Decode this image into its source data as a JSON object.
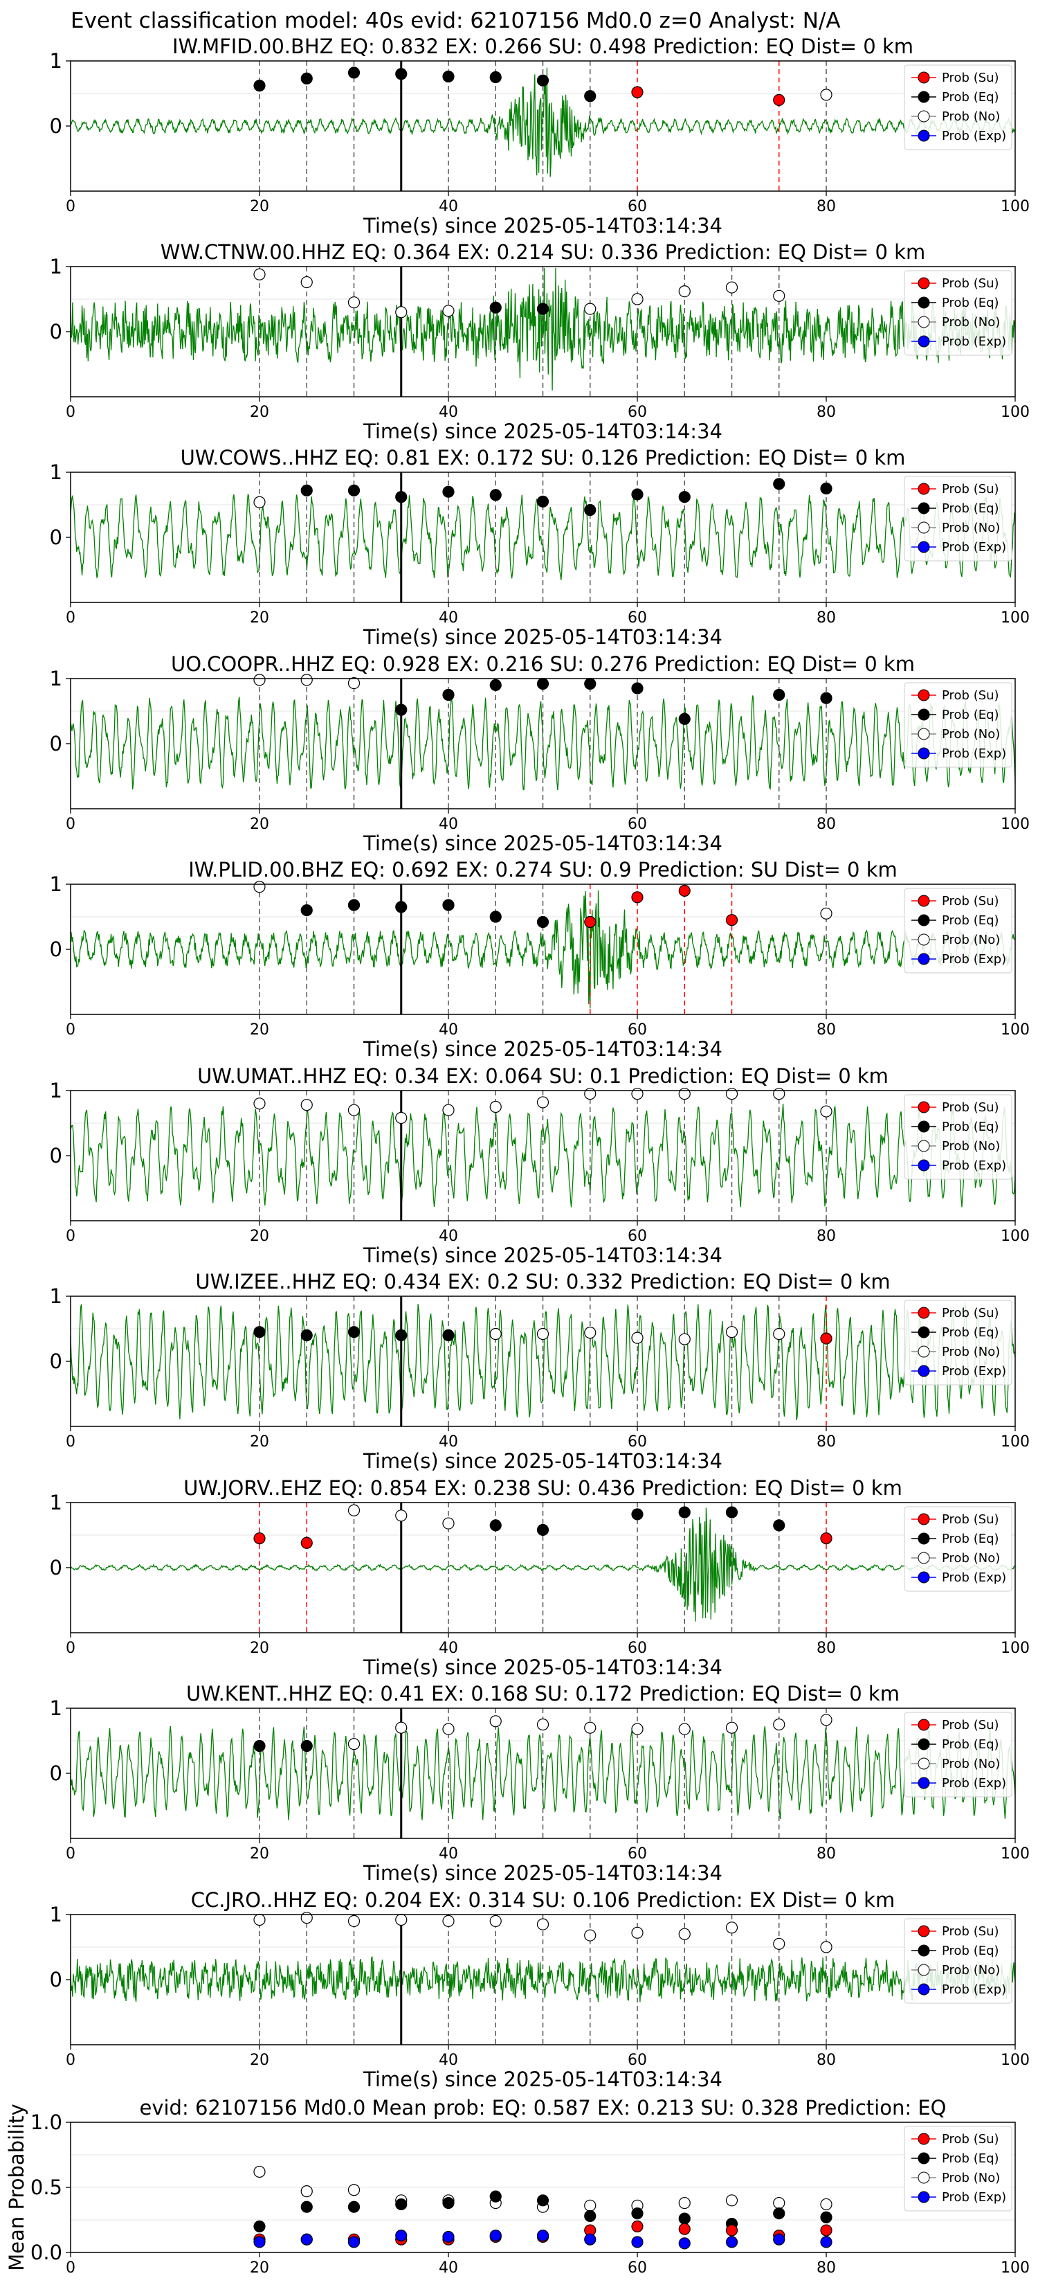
{
  "page_title": "Event classification model: 40s evid: 62107156 Md0.0 z=0 Analyst: N/A",
  "xlabel": "Time(s) since 2025-05-14T03:14:34",
  "xticks": [
    "0",
    "20",
    "40",
    "60",
    "80",
    "100"
  ],
  "yticks": [
    "0",
    "1"
  ],
  "legend": [
    "Prob (Su)",
    "Prob (Eq)",
    "Prob (No)",
    "Prob (Exp)"
  ],
  "colors": {
    "su": "#ff0000",
    "eq": "#000000",
    "no": "#ffffff",
    "exp": "#0000ff",
    "trace": "#008000"
  },
  "chart_data": [
    {
      "type": "line",
      "title": "IW.MFID.00.BHZ   EQ: 0.832  EX: 0.266  SU: 0.498   Prediction: EQ    Dist= 0 km",
      "xlim": [
        0,
        100
      ],
      "ylim": [
        -1,
        1
      ],
      "pick": 35,
      "trace": {
        "style": "burst",
        "center": 50,
        "amp": 0.08,
        "burst_amp": 0.85,
        "width": 3.5
      },
      "windows": [
        {
          "t": 20,
          "p": 0.62,
          "c": "eq"
        },
        {
          "t": 25,
          "p": 0.73,
          "c": "eq"
        },
        {
          "t": 30,
          "p": 0.82,
          "c": "eq"
        },
        {
          "t": 35,
          "p": 0.8,
          "c": "eq"
        },
        {
          "t": 40,
          "p": 0.76,
          "c": "eq"
        },
        {
          "t": 45,
          "p": 0.75,
          "c": "eq"
        },
        {
          "t": 50,
          "p": 0.7,
          "c": "eq"
        },
        {
          "t": 55,
          "p": 0.46,
          "c": "eq"
        },
        {
          "t": 60,
          "p": 0.52,
          "c": "su"
        },
        {
          "t": 75,
          "p": 0.4,
          "c": "su"
        },
        {
          "t": 80,
          "p": 0.48,
          "c": "no"
        }
      ]
    },
    {
      "type": "line",
      "title": "WW.CTNW.00.HHZ   EQ: 0.364  EX: 0.214  SU: 0.336   Prediction: EQ    Dist= 0 km",
      "xlim": [
        0,
        100
      ],
      "ylim": [
        -1,
        1
      ],
      "pick": 35,
      "trace": {
        "style": "noisy",
        "center": 50,
        "amp": 0.35,
        "burst_amp": 0.7,
        "width": 6
      },
      "windows": [
        {
          "t": 20,
          "p": 0.88,
          "c": "no"
        },
        {
          "t": 25,
          "p": 0.76,
          "c": "no"
        },
        {
          "t": 30,
          "p": 0.45,
          "c": "no"
        },
        {
          "t": 35,
          "p": 0.3,
          "c": "no"
        },
        {
          "t": 40,
          "p": 0.32,
          "c": "no"
        },
        {
          "t": 45,
          "p": 0.37,
          "c": "eq"
        },
        {
          "t": 50,
          "p": 0.35,
          "c": "eq"
        },
        {
          "t": 55,
          "p": 0.35,
          "c": "no"
        },
        {
          "t": 60,
          "p": 0.5,
          "c": "no"
        },
        {
          "t": 65,
          "p": 0.62,
          "c": "no"
        },
        {
          "t": 70,
          "p": 0.68,
          "c": "no"
        },
        {
          "t": 75,
          "p": 0.55,
          "c": "no"
        }
      ]
    },
    {
      "type": "line",
      "title": "UW.COWS..HHZ   EQ: 0.81  EX: 0.172  SU: 0.126   Prediction: EQ    Dist= 0 km",
      "xlim": [
        0,
        100
      ],
      "ylim": [
        -1,
        1
      ],
      "pick": 35,
      "trace": {
        "style": "wave",
        "center": 0,
        "amp": 0.55,
        "burst_amp": 0,
        "width": 0
      },
      "windows": [
        {
          "t": 20,
          "p": 0.54,
          "c": "no"
        },
        {
          "t": 25,
          "p": 0.72,
          "c": "eq"
        },
        {
          "t": 30,
          "p": 0.72,
          "c": "eq"
        },
        {
          "t": 35,
          "p": 0.62,
          "c": "eq"
        },
        {
          "t": 40,
          "p": 0.7,
          "c": "eq"
        },
        {
          "t": 45,
          "p": 0.65,
          "c": "eq"
        },
        {
          "t": 50,
          "p": 0.55,
          "c": "eq"
        },
        {
          "t": 55,
          "p": 0.42,
          "c": "eq"
        },
        {
          "t": 60,
          "p": 0.66,
          "c": "eq"
        },
        {
          "t": 65,
          "p": 0.62,
          "c": "eq"
        },
        {
          "t": 75,
          "p": 0.82,
          "c": "eq"
        },
        {
          "t": 80,
          "p": 0.75,
          "c": "eq"
        }
      ]
    },
    {
      "type": "line",
      "title": "UO.COOPR..HHZ   EQ: 0.928  EX: 0.216  SU: 0.276   Prediction: EQ    Dist= 0 km",
      "xlim": [
        0,
        100
      ],
      "ylim": [
        -1,
        1
      ],
      "pick": 35,
      "trace": {
        "style": "wave",
        "center": 0,
        "amp": 0.6,
        "burst_amp": 0,
        "width": 0
      },
      "windows": [
        {
          "t": 20,
          "p": 0.98,
          "c": "no"
        },
        {
          "t": 25,
          "p": 0.98,
          "c": "no"
        },
        {
          "t": 30,
          "p": 0.93,
          "c": "no"
        },
        {
          "t": 35,
          "p": 0.52,
          "c": "eq"
        },
        {
          "t": 40,
          "p": 0.75,
          "c": "eq"
        },
        {
          "t": 45,
          "p": 0.9,
          "c": "eq"
        },
        {
          "t": 50,
          "p": 0.92,
          "c": "eq"
        },
        {
          "t": 55,
          "p": 0.92,
          "c": "eq"
        },
        {
          "t": 60,
          "p": 0.85,
          "c": "eq"
        },
        {
          "t": 65,
          "p": 0.38,
          "c": "eq"
        },
        {
          "t": 75,
          "p": 0.75,
          "c": "eq"
        },
        {
          "t": 80,
          "p": 0.7,
          "c": "eq"
        }
      ]
    },
    {
      "type": "line",
      "title": "IW.PLID.00.BHZ   EQ: 0.692  EX: 0.274  SU: 0.9   Prediction: SU    Dist= 0 km",
      "xlim": [
        0,
        100
      ],
      "ylim": [
        -1,
        1
      ],
      "pick": 35,
      "trace": {
        "style": "burst",
        "center": 55,
        "amp": 0.2,
        "burst_amp": 0.85,
        "width": 4
      },
      "windows": [
        {
          "t": 20,
          "p": 0.96,
          "c": "no"
        },
        {
          "t": 25,
          "p": 0.6,
          "c": "eq"
        },
        {
          "t": 30,
          "p": 0.68,
          "c": "eq"
        },
        {
          "t": 35,
          "p": 0.65,
          "c": "eq"
        },
        {
          "t": 40,
          "p": 0.68,
          "c": "eq"
        },
        {
          "t": 45,
          "p": 0.5,
          "c": "eq"
        },
        {
          "t": 50,
          "p": 0.42,
          "c": "eq"
        },
        {
          "t": 55,
          "p": 0.42,
          "c": "su"
        },
        {
          "t": 60,
          "p": 0.8,
          "c": "su"
        },
        {
          "t": 65,
          "p": 0.9,
          "c": "su"
        },
        {
          "t": 70,
          "p": 0.45,
          "c": "su"
        },
        {
          "t": 80,
          "p": 0.55,
          "c": "no"
        }
      ]
    },
    {
      "type": "line",
      "title": "UW.UMAT..HHZ   EQ: 0.34  EX: 0.064  SU: 0.1   Prediction: EQ    Dist= 0 km",
      "xlim": [
        0,
        100
      ],
      "ylim": [
        -1,
        1
      ],
      "pick": 35,
      "trace": {
        "style": "wave",
        "center": 0,
        "amp": 0.65,
        "burst_amp": 0,
        "width": 0
      },
      "windows": [
        {
          "t": 20,
          "p": 0.8,
          "c": "no"
        },
        {
          "t": 25,
          "p": 0.78,
          "c": "no"
        },
        {
          "t": 30,
          "p": 0.7,
          "c": "no"
        },
        {
          "t": 35,
          "p": 0.58,
          "c": "no"
        },
        {
          "t": 40,
          "p": 0.7,
          "c": "no"
        },
        {
          "t": 45,
          "p": 0.75,
          "c": "no"
        },
        {
          "t": 50,
          "p": 0.82,
          "c": "no"
        },
        {
          "t": 55,
          "p": 0.95,
          "c": "no"
        },
        {
          "t": 60,
          "p": 0.95,
          "c": "no"
        },
        {
          "t": 65,
          "p": 0.95,
          "c": "no"
        },
        {
          "t": 70,
          "p": 0.95,
          "c": "no"
        },
        {
          "t": 75,
          "p": 0.95,
          "c": "no"
        },
        {
          "t": 80,
          "p": 0.68,
          "c": "no"
        }
      ]
    },
    {
      "type": "line",
      "title": "UW.IZEE..HHZ   EQ: 0.434  EX: 0.2  SU: 0.332   Prediction: EQ    Dist= 0 km",
      "xlim": [
        0,
        100
      ],
      "ylim": [
        -1,
        1
      ],
      "pick": 35,
      "trace": {
        "style": "wave",
        "center": 0,
        "amp": 0.75,
        "burst_amp": 0,
        "width": 0
      },
      "windows": [
        {
          "t": 20,
          "p": 0.45,
          "c": "eq"
        },
        {
          "t": 25,
          "p": 0.4,
          "c": "eq"
        },
        {
          "t": 30,
          "p": 0.45,
          "c": "eq"
        },
        {
          "t": 35,
          "p": 0.4,
          "c": "eq"
        },
        {
          "t": 40,
          "p": 0.4,
          "c": "eq"
        },
        {
          "t": 45,
          "p": 0.42,
          "c": "no"
        },
        {
          "t": 50,
          "p": 0.42,
          "c": "no"
        },
        {
          "t": 55,
          "p": 0.44,
          "c": "no"
        },
        {
          "t": 60,
          "p": 0.36,
          "c": "no"
        },
        {
          "t": 65,
          "p": 0.34,
          "c": "no"
        },
        {
          "t": 70,
          "p": 0.45,
          "c": "no"
        },
        {
          "t": 75,
          "p": 0.42,
          "c": "no"
        },
        {
          "t": 80,
          "p": 0.35,
          "c": "su"
        }
      ]
    },
    {
      "type": "line",
      "title": "UW.JORV..EHZ   EQ: 0.854  EX: 0.238  SU: 0.436   Prediction: EQ    Dist= 0 km",
      "xlim": [
        0,
        100
      ],
      "ylim": [
        -1,
        1
      ],
      "pick": 35,
      "trace": {
        "style": "burst",
        "center": 67,
        "amp": 0.03,
        "burst_amp": 0.9,
        "width": 3
      },
      "windows": [
        {
          "t": 20,
          "p": 0.45,
          "c": "su"
        },
        {
          "t": 25,
          "p": 0.38,
          "c": "su"
        },
        {
          "t": 30,
          "p": 0.88,
          "c": "no"
        },
        {
          "t": 35,
          "p": 0.8,
          "c": "no"
        },
        {
          "t": 40,
          "p": 0.68,
          "c": "no"
        },
        {
          "t": 45,
          "p": 0.65,
          "c": "eq"
        },
        {
          "t": 50,
          "p": 0.58,
          "c": "eq"
        },
        {
          "t": 60,
          "p": 0.82,
          "c": "eq"
        },
        {
          "t": 65,
          "p": 0.85,
          "c": "eq"
        },
        {
          "t": 70,
          "p": 0.85,
          "c": "eq"
        },
        {
          "t": 75,
          "p": 0.65,
          "c": "eq"
        },
        {
          "t": 80,
          "p": 0.45,
          "c": "su"
        }
      ]
    },
    {
      "type": "line",
      "title": "UW.KENT..HHZ   EQ: 0.41  EX: 0.168  SU: 0.172   Prediction: EQ    Dist= 0 km",
      "xlim": [
        0,
        100
      ],
      "ylim": [
        -1,
        1
      ],
      "pick": 35,
      "trace": {
        "style": "wave",
        "center": 0,
        "amp": 0.6,
        "burst_amp": 0,
        "width": 0
      },
      "windows": [
        {
          "t": 20,
          "p": 0.42,
          "c": "eq"
        },
        {
          "t": 25,
          "p": 0.42,
          "c": "eq"
        },
        {
          "t": 30,
          "p": 0.45,
          "c": "no"
        },
        {
          "t": 35,
          "p": 0.7,
          "c": "no"
        },
        {
          "t": 40,
          "p": 0.68,
          "c": "no"
        },
        {
          "t": 45,
          "p": 0.8,
          "c": "no"
        },
        {
          "t": 50,
          "p": 0.75,
          "c": "no"
        },
        {
          "t": 55,
          "p": 0.7,
          "c": "no"
        },
        {
          "t": 60,
          "p": 0.68,
          "c": "no"
        },
        {
          "t": 65,
          "p": 0.68,
          "c": "no"
        },
        {
          "t": 70,
          "p": 0.7,
          "c": "no"
        },
        {
          "t": 75,
          "p": 0.75,
          "c": "no"
        },
        {
          "t": 80,
          "p": 0.82,
          "c": "no"
        }
      ]
    },
    {
      "type": "line",
      "title": "CC.JRO..HHZ   EQ: 0.204  EX: 0.314  SU: 0.106   Prediction: EX    Dist= 0 km",
      "xlim": [
        0,
        100
      ],
      "ylim": [
        -1,
        1
      ],
      "pick": 35,
      "trace": {
        "style": "noisy",
        "center": 0,
        "amp": 0.25,
        "burst_amp": 0,
        "width": 0
      },
      "windows": [
        {
          "t": 20,
          "p": 0.92,
          "c": "no"
        },
        {
          "t": 25,
          "p": 0.95,
          "c": "no"
        },
        {
          "t": 30,
          "p": 0.9,
          "c": "no"
        },
        {
          "t": 35,
          "p": 0.92,
          "c": "no"
        },
        {
          "t": 40,
          "p": 0.9,
          "c": "no"
        },
        {
          "t": 45,
          "p": 0.9,
          "c": "no"
        },
        {
          "t": 50,
          "p": 0.85,
          "c": "no"
        },
        {
          "t": 55,
          "p": 0.68,
          "c": "no"
        },
        {
          "t": 60,
          "p": 0.72,
          "c": "no"
        },
        {
          "t": 65,
          "p": 0.7,
          "c": "no"
        },
        {
          "t": 70,
          "p": 0.8,
          "c": "no"
        },
        {
          "t": 75,
          "p": 0.55,
          "c": "no"
        },
        {
          "t": 80,
          "p": 0.5,
          "c": "no"
        }
      ]
    },
    {
      "type": "scatter",
      "title": "evid: 62107156  Md0.0   Mean prob:   EQ: 0.587  EX: 0.213  SU: 0.328   Prediction: EQ",
      "ylabel": "Mean Probability",
      "xlim": [
        0,
        100
      ],
      "ylim": [
        0,
        1
      ],
      "yticks": [
        "0.0",
        "0.5",
        "1.0"
      ],
      "x": [
        20,
        25,
        30,
        35,
        40,
        45,
        50,
        55,
        60,
        65,
        70,
        75,
        80
      ],
      "series": [
        {
          "name": "Prob (No)",
          "c": "no",
          "values": [
            0.62,
            0.47,
            0.48,
            0.4,
            0.4,
            0.38,
            0.35,
            0.36,
            0.36,
            0.38,
            0.4,
            0.38,
            0.37
          ]
        },
        {
          "name": "Prob (Eq)",
          "c": "eq",
          "values": [
            0.2,
            0.35,
            0.35,
            0.37,
            0.38,
            0.43,
            0.4,
            0.28,
            0.3,
            0.26,
            0.22,
            0.3,
            0.27
          ]
        },
        {
          "name": "Prob (Su)",
          "c": "su",
          "values": [
            0.1,
            0.1,
            0.1,
            0.1,
            0.1,
            0.12,
            0.12,
            0.17,
            0.2,
            0.18,
            0.17,
            0.13,
            0.17
          ]
        },
        {
          "name": "Prob (Exp)",
          "c": "exp",
          "values": [
            0.08,
            0.1,
            0.08,
            0.13,
            0.12,
            0.13,
            0.13,
            0.1,
            0.08,
            0.07,
            0.08,
            0.1,
            0.08
          ]
        }
      ]
    }
  ]
}
